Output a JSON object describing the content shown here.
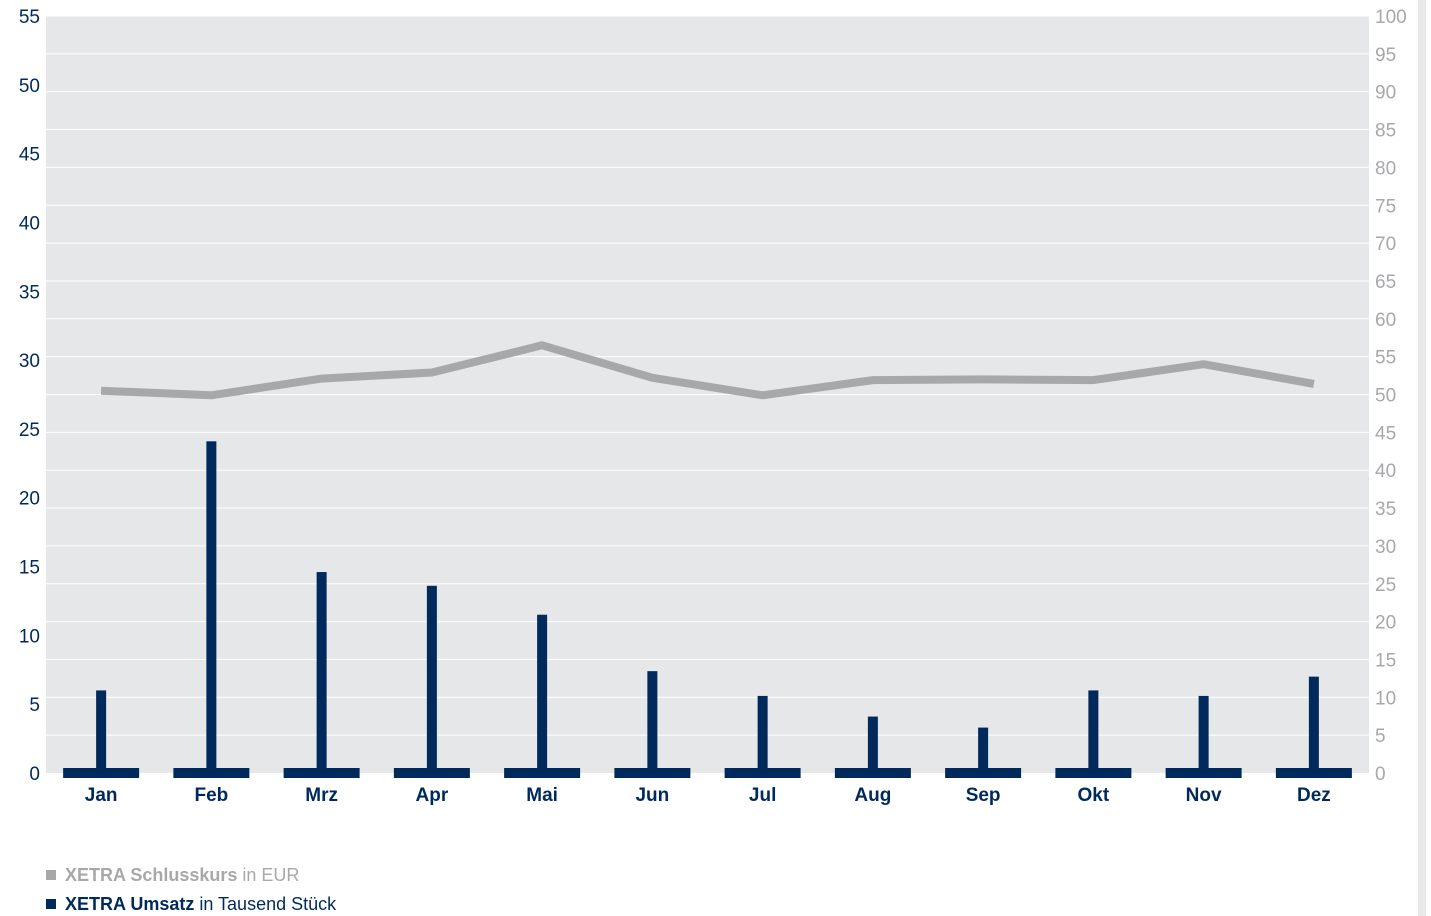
{
  "colors": {
    "plot_bg": "#e6e7e9",
    "grid": "#ffffff",
    "volume": "#002a5c",
    "price": "#a7a8aa",
    "left_axis_text": "#002a5c",
    "right_axis_text": "#a7a8aa"
  },
  "legend": {
    "price_bold": "XETRA Schlusskurs",
    "price_rest": " in EUR",
    "volume_bold": "XETRA Umsatz",
    "volume_rest": " in Tausend Stück"
  },
  "chart_data": {
    "type": "bar+line",
    "categories": [
      "Jan",
      "Feb",
      "Mrz",
      "Apr",
      "Mai",
      "Jun",
      "Jul",
      "Aug",
      "Sep",
      "Okt",
      "Nov",
      "Dez"
    ],
    "series": [
      {
        "name": "XETRA Umsatz",
        "type": "bar",
        "axis": "left",
        "values": [
          6.0,
          24.1,
          14.6,
          13.6,
          11.5,
          7.4,
          5.6,
          4.1,
          3.3,
          6.0,
          5.6,
          7.0
        ]
      },
      {
        "name": "XETRA Schlusskurs",
        "type": "line",
        "axis": "right",
        "values": [
          50.5,
          49.9,
          52.1,
          52.9,
          56.5,
          52.2,
          49.9,
          51.9,
          52.0,
          51.9,
          54.0,
          51.4
        ]
      }
    ],
    "y_left": {
      "min": 0,
      "max": 55,
      "ticks": [
        "0",
        "5",
        "10",
        "15",
        "20",
        "25",
        "30",
        "35",
        "40",
        "45",
        "50",
        "55"
      ]
    },
    "y_right": {
      "min": 0,
      "max": 100,
      "ticks": [
        "0",
        "5",
        "10",
        "15",
        "20",
        "25",
        "30",
        "35",
        "40",
        "45",
        "50",
        "55",
        "60",
        "65",
        "70",
        "75",
        "80",
        "85",
        "90",
        "95",
        "100"
      ]
    },
    "grid": true,
    "legend_position": "bottom-left"
  }
}
